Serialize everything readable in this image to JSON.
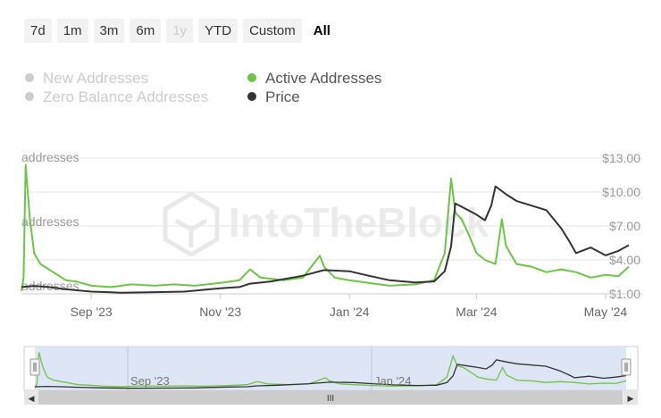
{
  "range_selector": {
    "buttons": [
      "7d",
      "1m",
      "3m",
      "6m",
      "1y",
      "YTD",
      "Custom",
      "All"
    ],
    "disabled": [
      "1y"
    ],
    "selected": "All"
  },
  "legend": [
    {
      "label": "New Addresses",
      "color": "#cccccc",
      "enabled": false
    },
    {
      "label": "Zero Balance Addresses",
      "color": "#cccccc",
      "enabled": false
    },
    {
      "label": "Active Addresses",
      "color": "#6cc644",
      "enabled": true
    },
    {
      "label": "Price",
      "color": "#333333",
      "enabled": true
    }
  ],
  "watermark": "IntoTheBlock",
  "navigator": {
    "x_labels": [
      "Sep '23",
      "Jan '24"
    ],
    "handle_glyph": "III",
    "scroll_left_glyph": "◀",
    "scroll_right_glyph": "▶"
  },
  "chart_data": {
    "type": "line",
    "title": "",
    "x_tick_labels": [
      "Sep '23",
      "Nov '23",
      "Jan '24",
      "Mar '24",
      "May '24"
    ],
    "x_range": [
      "2023-07-30",
      "2024-05-12"
    ],
    "y_left_tick_labels": [
      "addresses",
      "addresses",
      "addresses"
    ],
    "y_right_tick_labels": [
      "$1.00",
      "$4.00",
      "$7.00",
      "$10.00",
      "$13.00"
    ],
    "y_right_range": [
      1,
      13
    ],
    "grid": true,
    "legend_position": "top-left",
    "series": [
      {
        "name": "Active Addresses",
        "axis": "left",
        "color": "#6cc644",
        "note": "left axis unlabeled; values relative (0-1)",
        "points": [
          [
            "2023-07-30",
            0.02
          ],
          [
            "2023-07-31",
            0.12
          ],
          [
            "2023-08-01",
            0.95
          ],
          [
            "2023-08-03",
            0.55
          ],
          [
            "2023-08-05",
            0.3
          ],
          [
            "2023-08-08",
            0.22
          ],
          [
            "2023-08-12",
            0.18
          ],
          [
            "2023-08-16",
            0.14
          ],
          [
            "2023-08-20",
            0.1
          ],
          [
            "2023-08-25",
            0.09
          ],
          [
            "2023-09-01",
            0.06
          ],
          [
            "2023-09-10",
            0.05
          ],
          [
            "2023-09-20",
            0.07
          ],
          [
            "2023-10-01",
            0.06
          ],
          [
            "2023-10-10",
            0.07
          ],
          [
            "2023-10-20",
            0.06
          ],
          [
            "2023-11-01",
            0.08
          ],
          [
            "2023-11-10",
            0.1
          ],
          [
            "2023-11-15",
            0.18
          ],
          [
            "2023-11-20",
            0.12
          ],
          [
            "2023-12-01",
            0.1
          ],
          [
            "2023-12-10",
            0.12
          ],
          [
            "2023-12-18",
            0.28
          ],
          [
            "2023-12-20",
            0.2
          ],
          [
            "2023-12-25",
            0.12
          ],
          [
            "2024-01-01",
            0.1
          ],
          [
            "2024-01-10",
            0.08
          ],
          [
            "2024-01-20",
            0.06
          ],
          [
            "2024-02-01",
            0.07
          ],
          [
            "2024-02-10",
            0.1
          ],
          [
            "2024-02-15",
            0.3
          ],
          [
            "2024-02-18",
            0.85
          ],
          [
            "2024-02-20",
            0.6
          ],
          [
            "2024-02-23",
            0.55
          ],
          [
            "2024-02-26",
            0.45
          ],
          [
            "2024-03-01",
            0.3
          ],
          [
            "2024-03-05",
            0.25
          ],
          [
            "2024-03-10",
            0.22
          ],
          [
            "2024-03-13",
            0.55
          ],
          [
            "2024-03-15",
            0.35
          ],
          [
            "2024-03-20",
            0.22
          ],
          [
            "2024-03-27",
            0.2
          ],
          [
            "2024-04-03",
            0.16
          ],
          [
            "2024-04-10",
            0.18
          ],
          [
            "2024-04-17",
            0.16
          ],
          [
            "2024-04-24",
            0.12
          ],
          [
            "2024-05-01",
            0.14
          ],
          [
            "2024-05-07",
            0.13
          ],
          [
            "2024-05-12",
            0.2
          ]
        ]
      },
      {
        "name": "Price",
        "axis": "right",
        "color": "#333333",
        "points": [
          [
            "2023-07-30",
            1.6
          ],
          [
            "2023-08-05",
            1.7
          ],
          [
            "2023-08-12",
            1.6
          ],
          [
            "2023-08-20",
            1.4
          ],
          [
            "2023-09-01",
            1.2
          ],
          [
            "2023-09-15",
            1.1
          ],
          [
            "2023-10-01",
            1.15
          ],
          [
            "2023-10-15",
            1.2
          ],
          [
            "2023-11-01",
            1.5
          ],
          [
            "2023-11-10",
            1.6
          ],
          [
            "2023-11-15",
            1.9
          ],
          [
            "2023-11-25",
            2.1
          ],
          [
            "2023-12-01",
            2.3
          ],
          [
            "2023-12-10",
            2.6
          ],
          [
            "2023-12-20",
            3.1
          ],
          [
            "2024-01-01",
            3.0
          ],
          [
            "2024-01-10",
            2.6
          ],
          [
            "2024-01-20",
            2.2
          ],
          [
            "2024-02-01",
            2.0
          ],
          [
            "2024-02-10",
            2.1
          ],
          [
            "2024-02-15",
            3.0
          ],
          [
            "2024-02-18",
            5.2
          ],
          [
            "2024-02-20",
            9.0
          ],
          [
            "2024-02-25",
            8.5
          ],
          [
            "2024-03-01",
            8.0
          ],
          [
            "2024-03-05",
            7.5
          ],
          [
            "2024-03-08",
            8.8
          ],
          [
            "2024-03-10",
            10.5
          ],
          [
            "2024-03-15",
            9.8
          ],
          [
            "2024-03-20",
            9.2
          ],
          [
            "2024-03-27",
            8.8
          ],
          [
            "2024-04-03",
            8.4
          ],
          [
            "2024-04-10",
            6.8
          ],
          [
            "2024-04-14",
            5.6
          ],
          [
            "2024-04-17",
            4.6
          ],
          [
            "2024-04-24",
            5.1
          ],
          [
            "2024-05-01",
            4.4
          ],
          [
            "2024-05-07",
            4.8
          ],
          [
            "2024-05-12",
            5.3
          ]
        ]
      }
    ]
  }
}
